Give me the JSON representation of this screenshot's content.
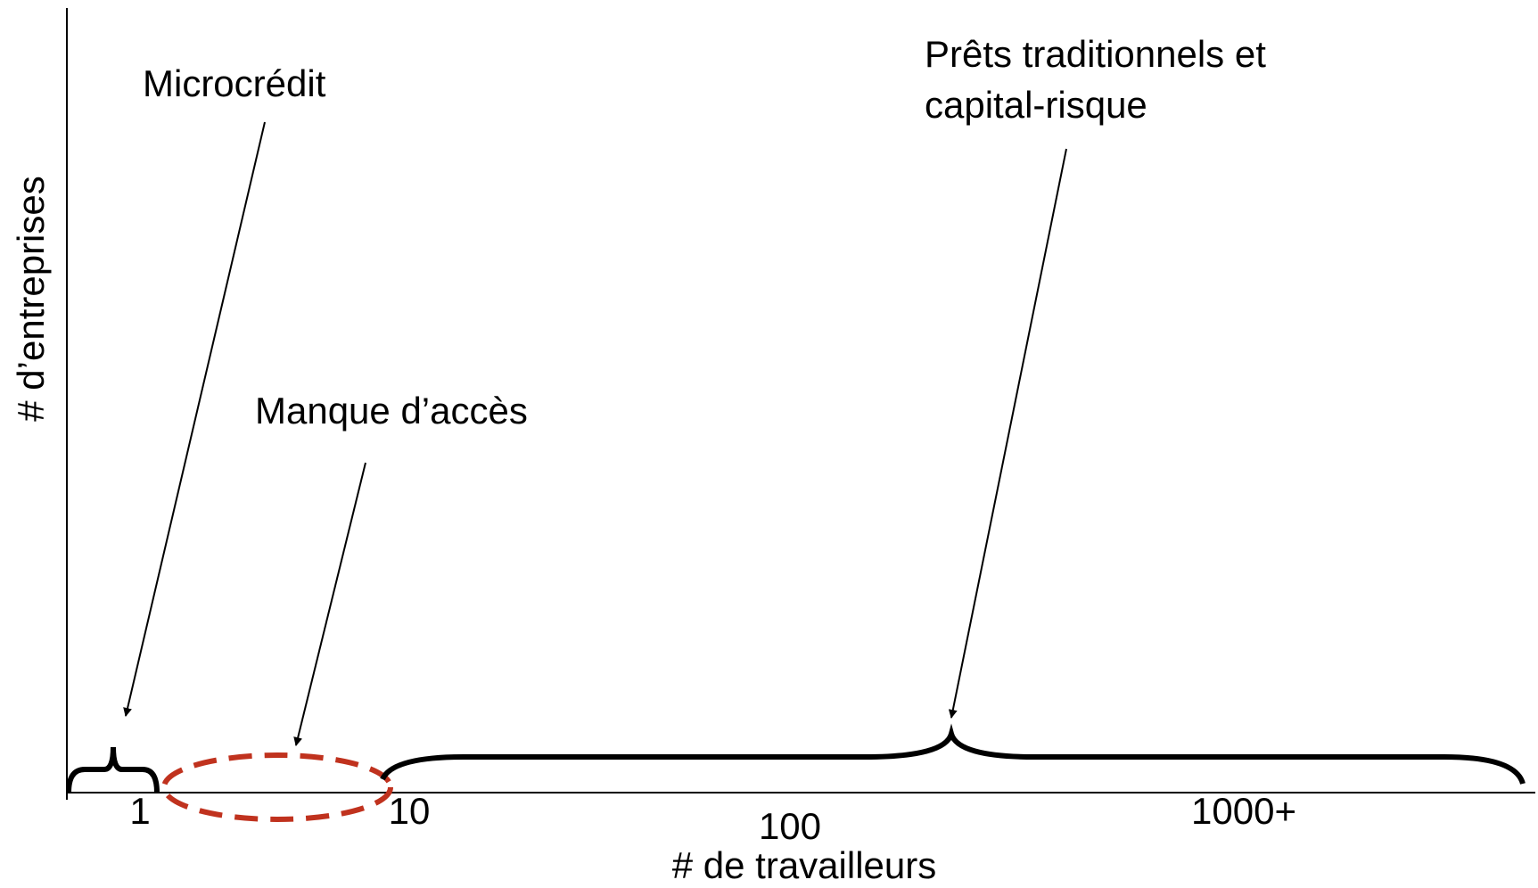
{
  "y_axis_label": "# d’entreprises",
  "x_axis_label": "# de travailleurs",
  "x_ticks": [
    "1",
    "10",
    "100",
    "1000+"
  ],
  "annotations": {
    "microcredit": "Microcrédit",
    "gap": "Manque d’accès",
    "traditional": [
      "Prêts traditionnels et",
      "capital-risque"
    ]
  }
}
